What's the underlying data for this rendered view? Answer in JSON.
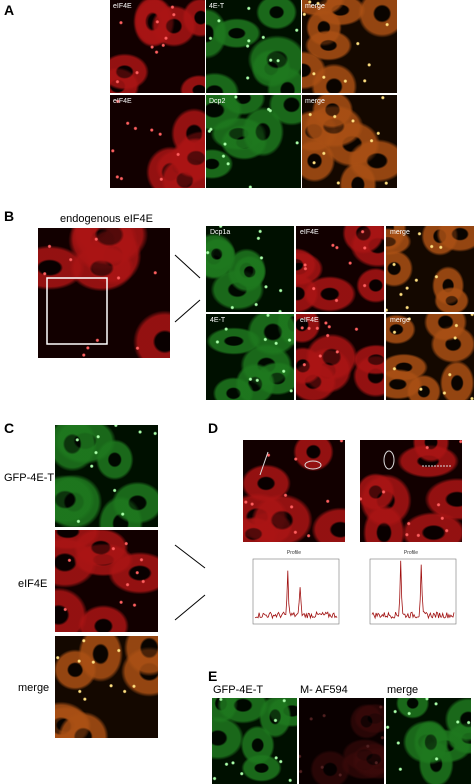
{
  "panel_a": {
    "label": "A",
    "rows": [
      [
        "eIF4E",
        "4E-T",
        "merge"
      ],
      [
        "eIF4E",
        "Dcp2",
        "merge"
      ]
    ]
  },
  "panel_b": {
    "label": "B",
    "title": "endogenous eIF4E",
    "rows": [
      [
        "Dcp1a",
        "eIF4E",
        "merge"
      ],
      [
        "4E-T",
        "eIF4E",
        "merge"
      ]
    ]
  },
  "panel_c": {
    "label": "C",
    "rows": [
      "GFP-4E-T",
      "eIF4E",
      "merge"
    ]
  },
  "panel_d": {
    "label": "D",
    "plot_titles": [
      "Profile",
      "Profile"
    ]
  },
  "panel_e": {
    "label": "E",
    "columns": [
      "GFP-4E-T",
      "M- AF594",
      "merge"
    ]
  }
}
